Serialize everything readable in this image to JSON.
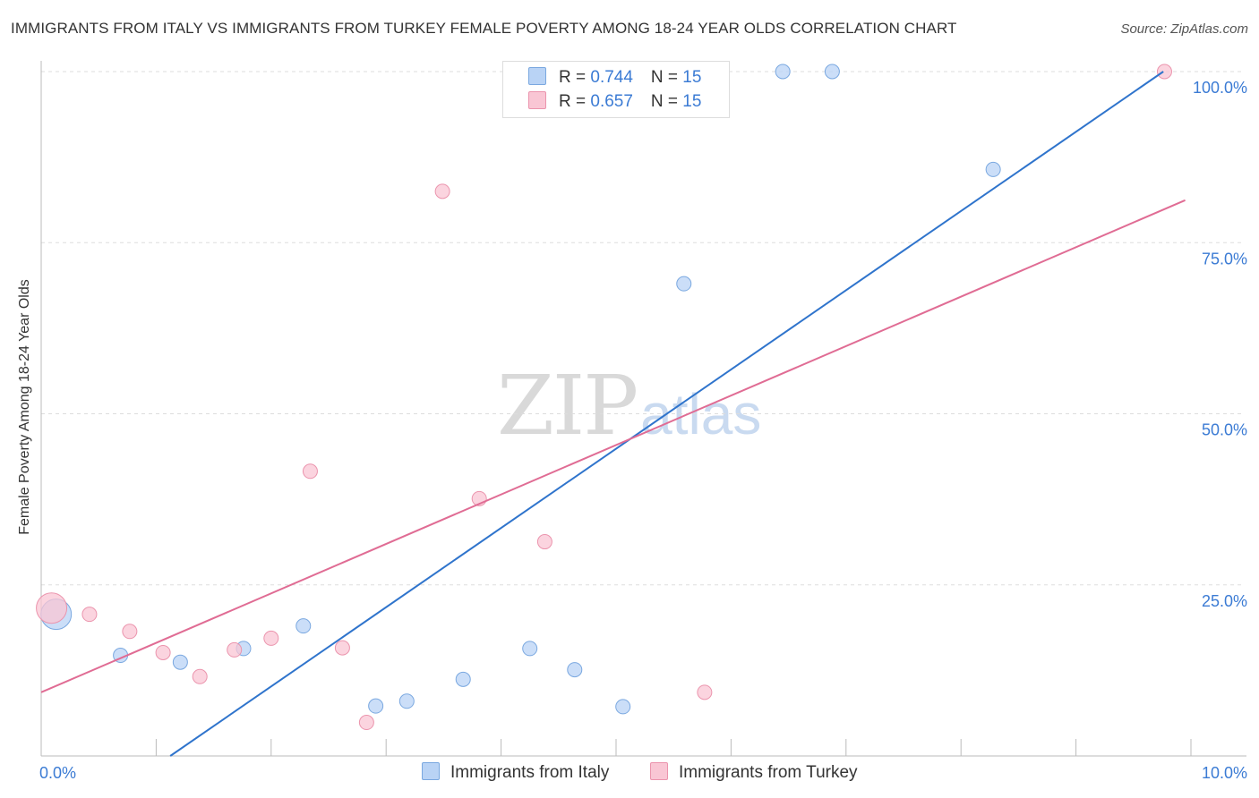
{
  "header": {
    "title": "IMMIGRANTS FROM ITALY VS IMMIGRANTS FROM TURKEY FEMALE POVERTY AMONG 18-24 YEAR OLDS CORRELATION CHART",
    "source": "Source: ZipAtlas.com"
  },
  "watermark": {
    "zip": "ZIP",
    "atlas": "atlas"
  },
  "legend": {
    "italy": {
      "r_label": "R = ",
      "r_value": "0.744",
      "n_label": "N = ",
      "n_value": "15"
    },
    "turkey": {
      "r_label": "R = ",
      "r_value": "0.657",
      "n_label": "N = ",
      "n_value": "15"
    }
  },
  "colors": {
    "italy_fill": "#b9d3f5",
    "italy_stroke": "#7aa8e0",
    "italy_line": "#2f74cc",
    "turkey_fill": "#f9c6d4",
    "turkey_stroke": "#eb94ad",
    "turkey_line": "#e06c94",
    "axis_tick": "#3b7bd4",
    "grid": "#dddddd"
  },
  "chart_data": {
    "type": "scatter",
    "title": "IMMIGRANTS FROM ITALY VS IMMIGRANTS FROM TURKEY FEMALE POVERTY AMONG 18-24 YEAR OLDS CORRELATION CHART",
    "xlabel": "",
    "ylabel": "Female Poverty Among 18-24 Year Olds",
    "xlim": [
      0,
      10
    ],
    "ylim": [
      0,
      100
    ],
    "x_tick_labels": [
      "0.0%",
      "10.0%"
    ],
    "y_tick_labels": [
      "100.0%",
      "75.0%",
      "50.0%",
      "25.0%"
    ],
    "y_ticks": [
      100,
      75,
      50,
      25
    ],
    "series": [
      {
        "name": "Immigrants from Italy",
        "color": "#b9d3f5",
        "points": [
          {
            "x": 0.13,
            "y": 20.7,
            "large": true
          },
          {
            "x": 0.69,
            "y": 14.7
          },
          {
            "x": 1.21,
            "y": 13.7
          },
          {
            "x": 1.76,
            "y": 15.7
          },
          {
            "x": 2.28,
            "y": 19.0
          },
          {
            "x": 2.91,
            "y": 7.3
          },
          {
            "x": 3.18,
            "y": 8.0
          },
          {
            "x": 3.67,
            "y": 11.2
          },
          {
            "x": 4.25,
            "y": 15.7
          },
          {
            "x": 4.64,
            "y": 12.6
          },
          {
            "x": 5.06,
            "y": 7.2
          },
          {
            "x": 5.59,
            "y": 69.0
          },
          {
            "x": 6.45,
            "y": 100.0
          },
          {
            "x": 6.88,
            "y": 100.0
          },
          {
            "x": 8.28,
            "y": 85.7
          }
        ],
        "trend": {
          "x0": 0.0,
          "y0": -13.0,
          "x1": 9.76,
          "y1": 100.0
        }
      },
      {
        "name": "Immigrants from Turkey",
        "color": "#f9c6d4",
        "points": [
          {
            "x": 0.09,
            "y": 21.6,
            "large": true
          },
          {
            "x": 0.42,
            "y": 20.7
          },
          {
            "x": 0.77,
            "y": 18.2
          },
          {
            "x": 1.06,
            "y": 15.1
          },
          {
            "x": 1.38,
            "y": 11.6
          },
          {
            "x": 1.68,
            "y": 15.5
          },
          {
            "x": 2.0,
            "y": 17.2
          },
          {
            "x": 2.34,
            "y": 41.6
          },
          {
            "x": 2.62,
            "y": 15.8
          },
          {
            "x": 2.83,
            "y": 4.9
          },
          {
            "x": 3.49,
            "y": 82.5
          },
          {
            "x": 3.81,
            "y": 37.6
          },
          {
            "x": 4.38,
            "y": 31.3
          },
          {
            "x": 5.77,
            "y": 9.3
          },
          {
            "x": 9.77,
            "y": 100.0
          }
        ],
        "trend": {
          "x0": 0.0,
          "y0": 9.3,
          "x1": 9.95,
          "y1": 81.2
        }
      }
    ]
  },
  "bottom_legend": {
    "italy_label": "Immigrants from Italy",
    "turkey_label": "Immigrants from Turkey"
  }
}
